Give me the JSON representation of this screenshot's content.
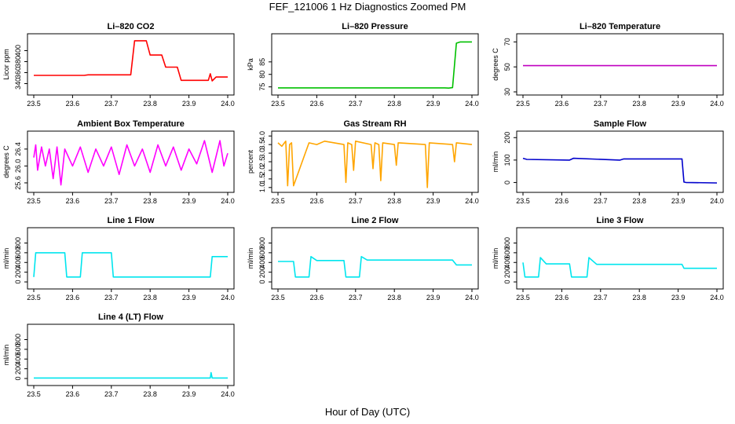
{
  "page": {
    "title": "FEF_121006  1 Hz Diagnostics Zoomed PM",
    "x_title": "Hour of Day (UTC)"
  },
  "chart_data": [
    {
      "type": "line",
      "title": "Li–820 CO2",
      "ylabel": "Licor ppm",
      "color": "#ff0000",
      "xlim": [
        23.5,
        24.0
      ],
      "ylim": [
        325,
        425
      ],
      "xticks": [
        "23.5",
        "23.6",
        "23.7",
        "23.8",
        "23.9",
        "24.0"
      ],
      "yticks": [
        "340",
        "360",
        "380",
        "400"
      ],
      "series": [
        {
          "x": [
            23.5,
            23.63,
            23.64,
            23.75,
            23.76,
            23.79,
            23.8,
            23.83,
            23.84,
            23.87,
            23.88,
            23.95,
            23.955,
            23.96,
            23.97,
            24.0
          ],
          "y": [
            355,
            355,
            356,
            356,
            418,
            418,
            392,
            392,
            370,
            370,
            346,
            346,
            358,
            345,
            352,
            352
          ]
        }
      ]
    },
    {
      "type": "line",
      "title": "Li–820 Pressure",
      "ylabel": "kPa",
      "color": "#00c000",
      "xlim": [
        23.5,
        24.0
      ],
      "ylim": [
        73,
        95
      ],
      "xticks": [
        "23.5",
        "23.6",
        "23.7",
        "23.8",
        "23.9",
        "24.0"
      ],
      "yticks": [
        "75",
        "80",
        "85"
      ],
      "series": [
        {
          "x": [
            23.5,
            23.93,
            23.94,
            23.95,
            23.96,
            23.97,
            24.0
          ],
          "y": [
            74.6,
            74.6,
            74.5,
            74.7,
            92.5,
            93.0,
            93.0
          ]
        }
      ]
    },
    {
      "type": "line",
      "title": "Li–820 Temperature",
      "ylabel": "degrees C",
      "color": "#c000c0",
      "xlim": [
        23.5,
        24.0
      ],
      "ylim": [
        30,
        74
      ],
      "xticks": [
        "23.5",
        "23.6",
        "23.7",
        "23.8",
        "23.9",
        "24.0"
      ],
      "yticks": [
        "30",
        "50",
        "70"
      ],
      "series": [
        {
          "x": [
            23.5,
            24.0
          ],
          "y": [
            51,
            51
          ]
        }
      ]
    },
    {
      "type": "line",
      "title": "Ambient Box Temperature",
      "ylabel": "degrees C",
      "color": "#ff00ff",
      "xlim": [
        23.5,
        24.0
      ],
      "ylim": [
        25.45,
        26.75
      ],
      "xticks": [
        "23.5",
        "23.6",
        "23.7",
        "23.8",
        "23.9",
        "24.0"
      ],
      "yticks": [
        "25.6",
        "26.0",
        "26.4"
      ],
      "series": [
        {
          "x": [
            23.5,
            23.505,
            23.51,
            23.52,
            23.53,
            23.54,
            23.55,
            23.56,
            23.57,
            23.58,
            23.6,
            23.62,
            23.64,
            23.66,
            23.68,
            23.7,
            23.72,
            23.74,
            23.76,
            23.78,
            23.8,
            23.82,
            23.84,
            23.86,
            23.88,
            23.9,
            23.92,
            23.94,
            23.96,
            23.98,
            23.99,
            24.0
          ],
          "y": [
            26.2,
            26.5,
            25.9,
            26.45,
            26.0,
            26.4,
            25.7,
            26.45,
            25.55,
            26.4,
            26.0,
            26.45,
            25.85,
            26.4,
            26.0,
            26.45,
            25.8,
            26.5,
            26.0,
            26.4,
            25.85,
            26.5,
            26.0,
            26.45,
            25.9,
            26.4,
            26.05,
            26.6,
            25.85,
            26.6,
            26.0,
            26.3
          ]
        }
      ]
    },
    {
      "type": "line",
      "title": "Gas Stream RH",
      "ylabel": "percent",
      "color": "#ffa500",
      "xlim": [
        23.5,
        24.0
      ],
      "ylim": [
        0.9,
        4.1
      ],
      "xticks": [
        "23.5",
        "23.6",
        "23.7",
        "23.8",
        "23.9",
        "24.0"
      ],
      "yticks": [
        "1.0",
        "1.5",
        "2.0",
        "2.5",
        "3.0",
        "3.5",
        "4.0"
      ],
      "series": [
        {
          "x": [
            23.5,
            23.51,
            23.52,
            23.525,
            23.53,
            23.535,
            23.54,
            23.58,
            23.6,
            23.62,
            23.67,
            23.675,
            23.68,
            23.69,
            23.695,
            23.7,
            23.74,
            23.745,
            23.75,
            23.76,
            23.765,
            23.77,
            23.8,
            23.805,
            23.81,
            23.88,
            23.885,
            23.89,
            23.95,
            23.955,
            23.96,
            24.0
          ],
          "y": [
            3.6,
            3.4,
            3.7,
            1.1,
            3.5,
            3.6,
            1.1,
            3.6,
            3.5,
            3.7,
            3.5,
            1.3,
            3.6,
            3.5,
            2.0,
            3.7,
            3.5,
            2.1,
            3.6,
            3.5,
            1.4,
            3.6,
            3.5,
            2.3,
            3.6,
            3.5,
            1.0,
            3.6,
            3.5,
            2.5,
            3.6,
            3.5
          ]
        }
      ]
    },
    {
      "type": "line",
      "title": "Sample Flow",
      "ylabel": "ml/min",
      "color": "#0000cc",
      "xlim": [
        23.5,
        24.0
      ],
      "ylim": [
        -30,
        215
      ],
      "xticks": [
        "23.5",
        "23.6",
        "23.7",
        "23.8",
        "23.9",
        "24.0"
      ],
      "yticks": [
        "0",
        "100",
        "200"
      ],
      "series": [
        {
          "x": [
            23.5,
            23.51,
            23.62,
            23.63,
            23.75,
            23.76,
            23.84,
            23.91,
            23.915,
            23.92,
            24.0
          ],
          "y": [
            108,
            103,
            100,
            108,
            100,
            105,
            105,
            105,
            2,
            0,
            -2
          ]
        }
      ]
    },
    {
      "type": "line",
      "title": "Line 1 Flow",
      "ylabel": "ml/min",
      "color": "#00e5ee",
      "xlim": [
        23.5,
        24.0
      ],
      "ylim": [
        -80,
        1050
      ],
      "xticks": [
        "23.5",
        "23.6",
        "23.7",
        "23.8",
        "23.9",
        "24.0"
      ],
      "yticks": [
        "0",
        "200",
        "400",
        "600",
        "800"
      ],
      "series": [
        {
          "x": [
            23.5,
            23.505,
            23.58,
            23.585,
            23.62,
            23.625,
            23.7,
            23.705,
            23.955,
            23.96,
            24.0
          ],
          "y": [
            100,
            600,
            600,
            100,
            100,
            600,
            600,
            100,
            100,
            520,
            520
          ]
        }
      ]
    },
    {
      "type": "line",
      "title": "Line 2 Flow",
      "ylabel": "ml/min",
      "color": "#00e5ee",
      "xlim": [
        23.5,
        24.0
      ],
      "ylim": [
        -80,
        1050
      ],
      "xticks": [
        "23.5",
        "23.6",
        "23.7",
        "23.8",
        "23.9",
        "24.0"
      ],
      "yticks": [
        "0",
        "200",
        "400",
        "600",
        "800"
      ],
      "series": [
        {
          "x": [
            23.5,
            23.54,
            23.545,
            23.58,
            23.585,
            23.6,
            23.67,
            23.675,
            23.71,
            23.715,
            23.73,
            23.95,
            23.96,
            24.0
          ],
          "y": [
            420,
            420,
            100,
            100,
            520,
            440,
            440,
            100,
            100,
            520,
            450,
            450,
            350,
            350
          ]
        }
      ]
    },
    {
      "type": "line",
      "title": "Line 3 Flow",
      "ylabel": "ml/min",
      "color": "#00e5ee",
      "xlim": [
        23.5,
        24.0
      ],
      "ylim": [
        -80,
        1050
      ],
      "xticks": [
        "23.5",
        "23.6",
        "23.7",
        "23.8",
        "23.9",
        "24.0"
      ],
      "yticks": [
        "0",
        "200",
        "400",
        "600",
        "800"
      ],
      "series": [
        {
          "x": [
            23.5,
            23.505,
            23.54,
            23.545,
            23.56,
            23.62,
            23.625,
            23.665,
            23.67,
            23.69,
            23.91,
            23.915,
            24.0
          ],
          "y": [
            400,
            100,
            100,
            500,
            370,
            370,
            100,
            100,
            500,
            360,
            360,
            280,
            280
          ]
        }
      ]
    },
    {
      "type": "line",
      "title": "Line 4 (LT) Flow",
      "ylabel": "ml/min",
      "color": "#00e5ee",
      "xlim": [
        23.5,
        24.0
      ],
      "ylim": [
        -80,
        1050
      ],
      "xticks": [
        "23.5",
        "23.6",
        "23.7",
        "23.8",
        "23.9",
        "24.0"
      ],
      "yticks": [
        "0",
        "200",
        "400",
        "600",
        "800"
      ],
      "series": [
        {
          "x": [
            23.5,
            23.955,
            23.957,
            23.96,
            24.0
          ],
          "y": [
            10,
            10,
            120,
            10,
            10
          ]
        }
      ]
    }
  ]
}
